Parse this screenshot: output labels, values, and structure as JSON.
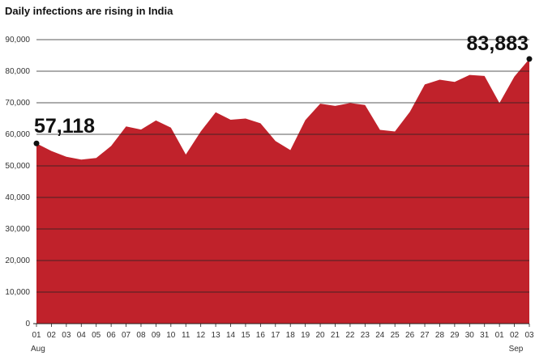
{
  "chart_data": {
    "type": "area",
    "title": "Daily infections are rising in India",
    "xlabel": "",
    "ylabel": "",
    "ylim": [
      0,
      90000
    ],
    "y_ticks": [
      0,
      10000,
      20000,
      30000,
      40000,
      50000,
      60000,
      70000,
      80000,
      90000
    ],
    "y_tick_labels": [
      "0",
      "10,000",
      "20,000",
      "30,000",
      "40,000",
      "50,000",
      "60,000",
      "70,000",
      "80,000",
      "90,000"
    ],
    "grid": "horizontal",
    "color": "#C0222B",
    "categories": [
      "01",
      "02",
      "03",
      "04",
      "05",
      "06",
      "07",
      "08",
      "09",
      "10",
      "11",
      "12",
      "13",
      "14",
      "15",
      "16",
      "17",
      "18",
      "19",
      "20",
      "21",
      "22",
      "23",
      "24",
      "25",
      "26",
      "27",
      "28",
      "29",
      "30",
      "31",
      "01",
      "02",
      "03"
    ],
    "month_labels": [
      {
        "index": 0,
        "label": "Aug"
      },
      {
        "index": 32,
        "label": "Sep"
      }
    ],
    "values": [
      57118,
      54700,
      52900,
      52000,
      52500,
      56300,
      62500,
      61500,
      64400,
      62100,
      53600,
      60900,
      67000,
      64600,
      65000,
      63500,
      57900,
      55000,
      64500,
      69700,
      69000,
      69900,
      69300,
      61400,
      60900,
      67100,
      75800,
      77300,
      76600,
      78800,
      78500,
      69900,
      78300,
      83883
    ],
    "annotations": [
      {
        "index": 0,
        "label": "57,118"
      },
      {
        "index": 33,
        "label": "83,883"
      }
    ]
  }
}
